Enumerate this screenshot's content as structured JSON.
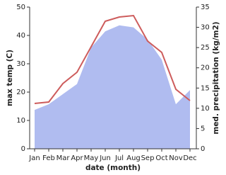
{
  "chart_data": {
    "type": "line-area",
    "x_label": "date (month)",
    "y_label": "max temp (C)",
    "y2_label": "med. precipitation (kg/m2)",
    "categories": [
      "Jan",
      "Feb",
      "Mar",
      "Apr",
      "May",
      "Jun",
      "Jul",
      "Aug",
      "Sep",
      "Oct",
      "Nov",
      "Dec"
    ],
    "series": [
      {
        "name": "max temp",
        "color": "#cd5c5c",
        "values": [
          16,
          16.5,
          23,
          27,
          36,
          45,
          46.5,
          47,
          38,
          34,
          21,
          17
        ]
      },
      {
        "name": "med. precipitation",
        "color": "#b0bcf0",
        "axis": "y2",
        "values": [
          9.6,
          11,
          13.5,
          16,
          25,
          29,
          30.5,
          30,
          27,
          22,
          11,
          14.5
        ]
      }
    ],
    "ylim": [
      0,
      50
    ],
    "yticks": [
      0,
      10,
      20,
      30,
      40,
      50
    ],
    "y2lim": [
      0,
      35
    ],
    "y2ticks": [
      0,
      5,
      10,
      15,
      20,
      25,
      30,
      35
    ]
  }
}
